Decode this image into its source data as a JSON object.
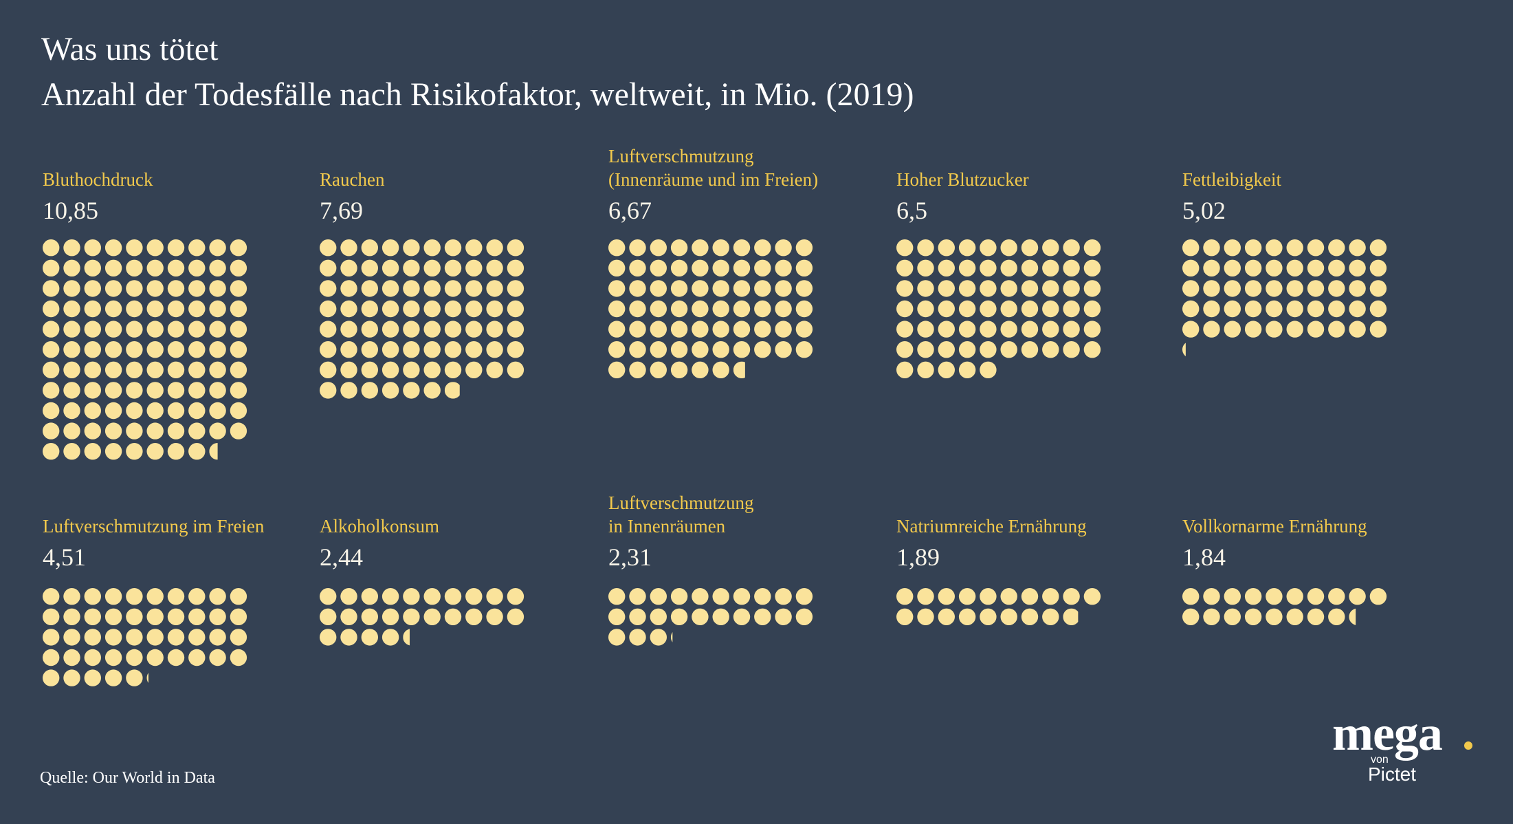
{
  "header": {
    "title": "Was uns tötet",
    "subtitle": "Anzahl der Todesfälle nach Risikofaktor, weltweit, in Mio. (2019)"
  },
  "source": "Quelle: Our World in Data",
  "logo": {
    "word": "mega",
    "von": "von",
    "brand": "Pictet"
  },
  "colors": {
    "background": "#344153",
    "dot": "#fae39b",
    "label": "#f2c94c",
    "value": "#f7f3e8",
    "logo_dot": "#f2c94c"
  },
  "chart_data": {
    "type": "pictogram",
    "unit": "Mio.",
    "dots_per_unit": 10,
    "dots_per_row": 10,
    "categories": [
      {
        "label_lines": [
          "Bluthochdruck"
        ],
        "value_text": "10,85",
        "value": 10.85
      },
      {
        "label_lines": [
          "Rauchen"
        ],
        "value_text": "7,69",
        "value": 7.69
      },
      {
        "label_lines": [
          "Luftverschmutzung",
          "(Innenräume und im Freien)"
        ],
        "value_text": "6,67",
        "value": 6.67
      },
      {
        "label_lines": [
          "Hoher Blutzucker"
        ],
        "value_text": "6,5",
        "value": 6.5
      },
      {
        "label_lines": [
          "Fettleibigkeit"
        ],
        "value_text": "5,02",
        "value": 5.02
      },
      {
        "label_lines": [
          "Luftverschmutzung im Freien"
        ],
        "value_text": "4,51",
        "value": 4.51
      },
      {
        "label_lines": [
          "Alkoholkonsum"
        ],
        "value_text": "2,44",
        "value": 2.44
      },
      {
        "label_lines": [
          "Luftverschmutzung",
          "in Innenräumen"
        ],
        "value_text": "2,31",
        "value": 2.31
      },
      {
        "label_lines": [
          "Natriumreiche Ernährung"
        ],
        "value_text": "1,89",
        "value": 1.89
      },
      {
        "label_lines": [
          "Vollkornarme Ernährung"
        ],
        "value_text": "1,84",
        "value": 1.84
      }
    ]
  }
}
